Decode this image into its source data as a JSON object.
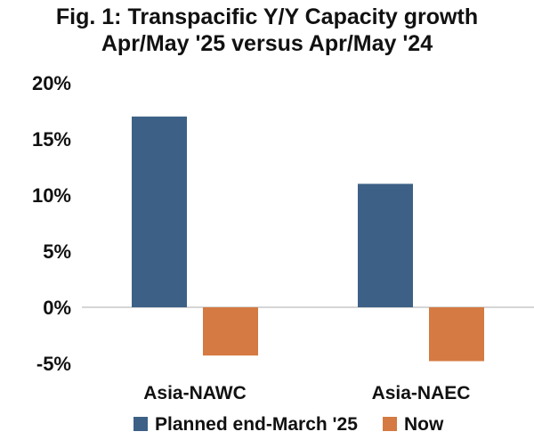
{
  "chart_data": {
    "type": "bar",
    "title_lines": [
      "Fig. 1: Transpacific Y/Y Capacity growth",
      "Apr/May '25 versus Apr/May '24"
    ],
    "categories": [
      "Asia-NAWC",
      "Asia-NAEC"
    ],
    "series": [
      {
        "name": "Planned end-March '25",
        "values": [
          17.0,
          11.0
        ],
        "color": "#3d6186"
      },
      {
        "name": "Now",
        "values": [
          -4.3,
          -4.8
        ],
        "color": "#d47a42"
      }
    ],
    "ylim": [
      -5,
      20
    ],
    "yticks": [
      20,
      15,
      10,
      5,
      0,
      -5
    ],
    "ytick_labels": [
      "20%",
      "15%",
      "10%",
      "5%",
      "0%",
      "-5%"
    ],
    "grid": false,
    "legend_position": "bottom"
  }
}
